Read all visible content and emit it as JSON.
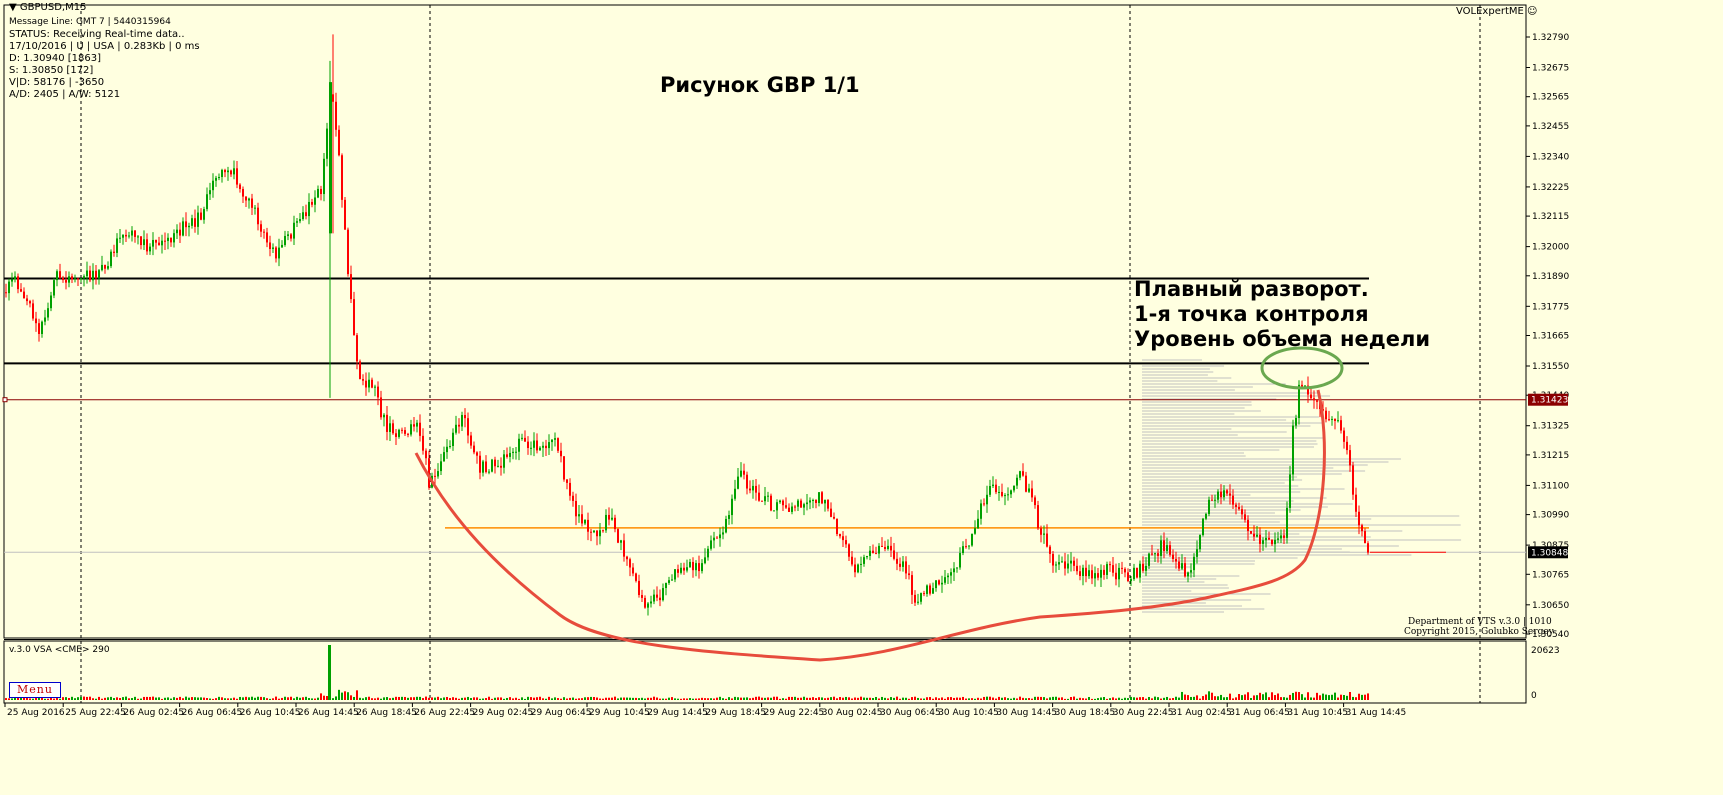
{
  "window": {
    "symbol_title": "GBPUSD,M15",
    "expert_label": "VOLExpertME",
    "menu_label": "Menu"
  },
  "info_lines": [
    "Message Line: GMT 7 | 5440315964",
    "STATUS:  Receiving Real-time data..",
    "17/10/2016 | U | USA | 0.283Kb | 0 ms",
    "D: 1.30940  [1863]",
    "S: 1.30850  [172]",
    "V|D: 58176 | -3650",
    "A/D: 2405 | A/W: 5121"
  ],
  "annotations": {
    "figure_title": "Рисунок GBP  1/1",
    "note_lines": [
      "Плавный разворот.",
      "1-я точка контроля",
      "Уровень объема недели"
    ]
  },
  "footer": {
    "department": "Department of VTS  v.3.0 | 1010",
    "copyright": "Copyright 2015, Golubko Sergey"
  },
  "indicator": {
    "label": "v.3.0 VSA <CME> 290",
    "scale_top": "20623",
    "scale_bottom": "0"
  },
  "colors": {
    "background": "#ffffe0",
    "bull": "#00a000",
    "bear": "#ff0000",
    "level_line": "#000000",
    "poc_line": "#ff8c00",
    "price_line": "#8b0000",
    "curve": "#e74c3c",
    "ellipse": "#6aa84f",
    "profile": "#c0c0c0"
  },
  "chart_data": {
    "type": "candlestick",
    "symbol": "GBPUSD",
    "timeframe": "M15",
    "y_ticks": [
      "1.32790",
      "1.32675",
      "1.32565",
      "1.32455",
      "1.32340",
      "1.32225",
      "1.32115",
      "1.32000",
      "1.31890",
      "1.31775",
      "1.31665",
      "1.31550",
      "1.31440",
      "1.31325",
      "1.31215",
      "1.31100",
      "1.30990",
      "1.30875",
      "1.30765",
      "1.30650",
      "1.30540"
    ],
    "ylim": [
      1.3049,
      1.3285
    ],
    "x_labels": [
      "25 Aug 2016",
      "25 Aug 22:45",
      "26 Aug 02:45",
      "26 Aug 06:45",
      "26 Aug 10:45",
      "26 Aug 14:45",
      "26 Aug 18:45",
      "26 Aug 22:45",
      "29 Aug 02:45",
      "29 Aug 06:45",
      "29 Aug 10:45",
      "29 Aug 14:45",
      "29 Aug 18:45",
      "29 Aug 22:45",
      "30 Aug 02:45",
      "30 Aug 06:45",
      "30 Aug 10:45",
      "30 Aug 14:45",
      "30 Aug 18:45",
      "30 Aug 22:45",
      "31 Aug 02:45",
      "31 Aug 06:45",
      "31 Aug 10:45",
      "31 Aug 14:45"
    ],
    "current_price": "1.30848",
    "marker_price": "1.31423",
    "horizontal_levels": [
      1.3188,
      1.3156
    ],
    "poc_level": 1.3094,
    "anchors": [
      [
        0,
        1.318
      ],
      [
        15,
        1.3187
      ],
      [
        40,
        1.3169
      ],
      [
        55,
        1.3188
      ],
      [
        100,
        1.3189
      ],
      [
        125,
        1.3206
      ],
      [
        150,
        1.32
      ],
      [
        175,
        1.3205
      ],
      [
        200,
        1.3211
      ],
      [
        215,
        1.3227
      ],
      [
        232,
        1.323
      ],
      [
        255,
        1.3212
      ],
      [
        275,
        1.3196
      ],
      [
        300,
        1.321
      ],
      [
        322,
        1.3222
      ],
      [
        330,
        1.326
      ],
      [
        338,
        1.324
      ],
      [
        345,
        1.3205
      ],
      [
        358,
        1.315
      ],
      [
        372,
        1.3148
      ],
      [
        385,
        1.3133
      ],
      [
        405,
        1.3128
      ],
      [
        418,
        1.3133
      ],
      [
        430,
        1.311
      ],
      [
        445,
        1.3122
      ],
      [
        462,
        1.3137
      ],
      [
        480,
        1.3117
      ],
      [
        500,
        1.3118
      ],
      [
        520,
        1.3127
      ],
      [
        540,
        1.3123
      ],
      [
        555,
        1.3128
      ],
      [
        570,
        1.3105
      ],
      [
        590,
        1.3091
      ],
      [
        610,
        1.3098
      ],
      [
        625,
        1.3085
      ],
      [
        645,
        1.3065
      ],
      [
        660,
        1.3069
      ],
      [
        680,
        1.308
      ],
      [
        700,
        1.3078
      ],
      [
        715,
        1.309
      ],
      [
        725,
        1.3095
      ],
      [
        738,
        1.3115
      ],
      [
        755,
        1.3108
      ],
      [
        775,
        1.3101
      ],
      [
        800,
        1.3104
      ],
      [
        825,
        1.3106
      ],
      [
        840,
        1.309
      ],
      [
        855,
        1.3078
      ],
      [
        880,
        1.3088
      ],
      [
        900,
        1.3082
      ],
      [
        915,
        1.3068
      ],
      [
        935,
        1.3072
      ],
      [
        955,
        1.3078
      ],
      [
        975,
        1.3095
      ],
      [
        990,
        1.3112
      ],
      [
        1005,
        1.3105
      ],
      [
        1020,
        1.3116
      ],
      [
        1035,
        1.31
      ],
      [
        1050,
        1.3082
      ],
      [
        1070,
        1.3081
      ],
      [
        1090,
        1.3076
      ],
      [
        1110,
        1.3078
      ],
      [
        1130,
        1.3075
      ],
      [
        1150,
        1.3083
      ],
      [
        1165,
        1.3088
      ],
      [
        1180,
        1.308
      ],
      [
        1190,
        1.3074
      ],
      [
        1200,
        1.3093
      ],
      [
        1210,
        1.3103
      ],
      [
        1225,
        1.311
      ],
      [
        1240,
        1.31
      ],
      [
        1255,
        1.309
      ],
      [
        1270,
        1.3088
      ],
      [
        1285,
        1.309
      ],
      [
        1293,
        1.313
      ],
      [
        1300,
        1.3148
      ],
      [
        1310,
        1.3143
      ],
      [
        1320,
        1.3138
      ],
      [
        1335,
        1.3136
      ],
      [
        1345,
        1.3128
      ],
      [
        1352,
        1.311
      ],
      [
        1360,
        1.3095
      ],
      [
        1366,
        1.3087
      ],
      [
        1372,
        1.3084
      ]
    ],
    "volume_scale_max": 20623
  }
}
